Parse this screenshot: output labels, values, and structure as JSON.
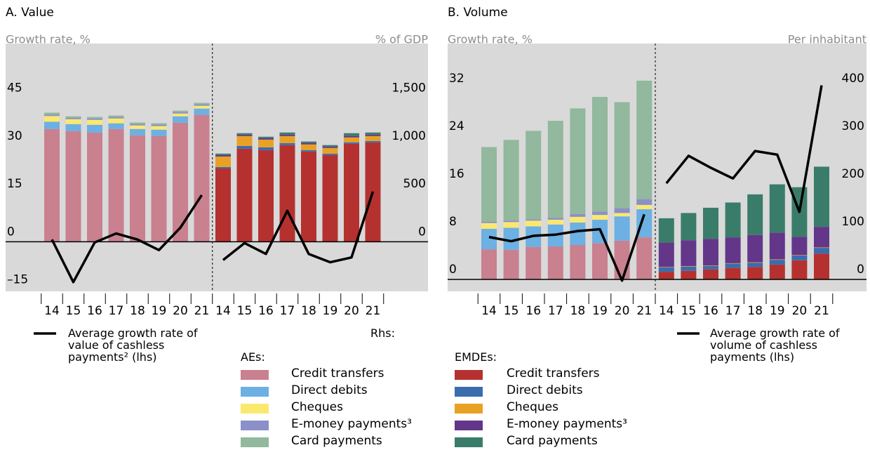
{
  "chart_data": [
    {
      "type": "bar",
      "title": "A. Value",
      "y_label": "Growth rate, %",
      "y2_label": "% of GDP",
      "categories": [
        "14",
        "15",
        "16",
        "17",
        "18",
        "19",
        "20",
        "21"
      ],
      "ylim": [
        -15.5,
        62
      ],
      "yticks": [
        {
          "value": -15,
          "label": "–15"
        },
        0,
        15,
        30,
        45
      ],
      "y2lim": [
        -516.7,
        2066.7
      ],
      "y2ticks": [
        0,
        500,
        {
          "value": 1000,
          "label": "1,000"
        },
        {
          "value": 1500,
          "label": "1,500"
        }
      ],
      "grid": false,
      "groups": [
        {
          "name": "AEs:",
          "series": [
            {
              "name": "Credit transfers",
              "color": "#c9808f",
              "axis": "y2",
              "values": [
                1176,
                1154,
                1139,
                1176,
                1110,
                1103,
                1242,
                1323
              ]
            },
            {
              "name": "Direct debits",
              "color": "#6cb0e4",
              "axis": "y2",
              "values": [
                75,
                73,
                81,
                59,
                66,
                66,
                66,
                66
              ]
            },
            {
              "name": "Cheques",
              "color": "#fbe86f",
              "axis": "y2",
              "values": [
                60,
                51,
                51,
                51,
                37,
                37,
                29,
                29
              ]
            },
            {
              "name": "E-money payments³",
              "color": "#8b90c8",
              "axis": "y2",
              "values": [
                15,
                15,
                15,
                15,
                15,
                15,
                15,
                15
              ]
            },
            {
              "name": "Card payments",
              "color": "#92b89d",
              "axis": "y2",
              "values": [
                20,
                15,
                15,
                15,
                15,
                15,
                15,
                15
              ]
            }
          ]
        },
        {
          "name": "EMDEs:",
          "series": [
            {
              "name": "Credit transfers",
              "color": "#b5312f",
              "axis": "y2",
              "values": [
                764,
                970,
                955,
                1007,
                941,
                904,
                1022,
                1036
              ]
            },
            {
              "name": "Direct debits",
              "color": "#3a6cae",
              "axis": "y2",
              "values": [
                15,
                29,
                29,
                22,
                15,
                15,
                15,
                15
              ]
            },
            {
              "name": "Cheques",
              "color": "#e9a125",
              "axis": "y2",
              "values": [
                110,
                103,
                81,
                73,
                59,
                59,
                51,
                51
              ]
            },
            {
              "name": "E-money payments³",
              "color": "#63368a",
              "axis": "y2",
              "values": [
                15,
                15,
                15,
                15,
                15,
                15,
                15,
                15
              ]
            },
            {
              "name": "Card payments",
              "color": "#3a7c6a",
              "axis": "y2",
              "values": [
                15,
                15,
                15,
                22,
                15,
                15,
                29,
                22
              ]
            }
          ]
        }
      ],
      "line": {
        "name": "Average growth rate of value of cashless payments² (lhs)",
        "color": "#000000",
        "values": [
          [
            0.7,
            -12.6,
            -0.2,
            2.6,
            0.7,
            -2.6,
            4.4,
            14.6
          ],
          [
            -5.7,
            -0.4,
            -3.8,
            9.7,
            -3.8,
            -6.4,
            -4.9,
            15.7
          ]
        ]
      }
    },
    {
      "type": "bar",
      "title": "B. Volume",
      "y_label": "Growth rate, %",
      "y2_label": "Per inhabitant",
      "categories": [
        "14",
        "15",
        "16",
        "17",
        "18",
        "19",
        "20",
        "21"
      ],
      "ylim": [
        -2,
        39.5
      ],
      "yticks": [
        0,
        8,
        16,
        24,
        32
      ],
      "y2lim": [
        -25,
        493.75
      ],
      "y2ticks": [
        0,
        100,
        200,
        300,
        400
      ],
      "grid": false,
      "groups": [
        {
          "name": "AEs:",
          "series": [
            {
              "name": "Credit transfers",
              "color": "#c9808f",
              "axis": "y2",
              "values": [
                63,
                62,
                68,
                69,
                72,
                76,
                81,
                88
              ]
            },
            {
              "name": "Direct debits",
              "color": "#6cb0e4",
              "axis": "y2",
              "values": [
                43,
                46,
                43,
                46,
                47,
                49,
                51,
                59
              ]
            },
            {
              "name": "Cheques",
              "color": "#fbe86f",
              "axis": "y2",
              "values": [
                12,
                12,
                12,
                10,
                12,
                10,
                7,
                9
              ]
            },
            {
              "name": "E-money payments³",
              "color": "#8b90c8",
              "axis": "y2",
              "values": [
                3,
                3,
                3,
                4,
                6,
                7,
                10,
                12
              ]
            },
            {
              "name": "Card payments",
              "color": "#92b89d",
              "axis": "y2",
              "values": [
                156,
                169,
                185,
                203,
                221,
                240,
                222,
                248
              ]
            }
          ]
        },
        {
          "name": "EMDEs:",
          "series": [
            {
              "name": "Credit transfers",
              "color": "#b5312f",
              "axis": "y2",
              "values": [
                16,
                18,
                21,
                24,
                26,
                31,
                40,
                54
              ]
            },
            {
              "name": "Direct debits",
              "color": "#3a6cae",
              "axis": "y2",
              "values": [
                9,
                9,
                7,
                9,
                9,
                10,
                10,
                12
              ]
            },
            {
              "name": "Cheques",
              "color": "#e9a125",
              "axis": "y2",
              "values": [
                1,
                1,
                1,
                1,
                1,
                1,
                1,
                1
              ]
            },
            {
              "name": "E-money payments³",
              "color": "#63368a",
              "axis": "y2",
              "values": [
                51,
                54,
                56,
                54,
                57,
                56,
                38,
                43
              ]
            },
            {
              "name": "Card payments",
              "color": "#3a7c6a",
              "axis": "y2",
              "values": [
                51,
                57,
                65,
                73,
                85,
                101,
                104,
                126
              ]
            }
          ]
        }
      ],
      "line": {
        "name": "Average growth rate of volume of cashless payments (lhs)",
        "color": "#000000",
        "values": [
          [
            7.1,
            6.4,
            7.3,
            7.5,
            8.1,
            8.4,
            -0.2,
            10.9
          ],
          [
            16.1,
            20.7,
            18.7,
            16.9,
            21.5,
            20.9,
            11.3,
            32.5
          ]
        ]
      }
    }
  ],
  "legend": {
    "title": "Rhs:"
  }
}
